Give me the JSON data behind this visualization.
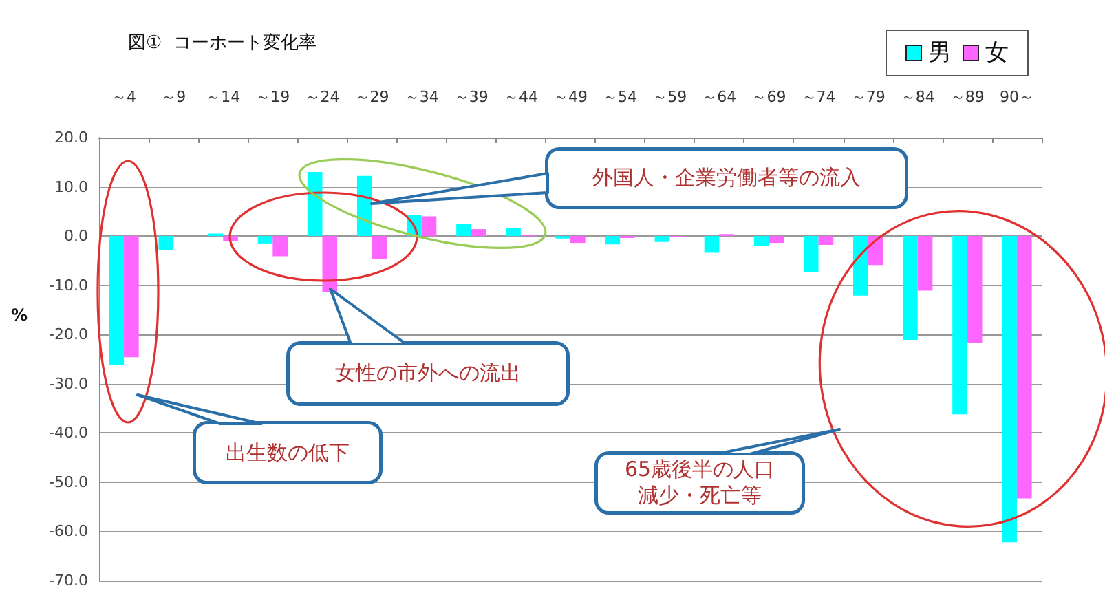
{
  "chart_data": {
    "type": "bar",
    "title": "図①  コーホート変化率",
    "ylabel": "%",
    "categories": [
      "～4",
      "～9",
      "～14",
      "～19",
      "～24",
      "～29",
      "～34",
      "～39",
      "～44",
      "～49",
      "～54",
      "～59",
      "～64",
      "～69",
      "～74",
      "～79",
      "～84",
      "～89",
      "90～"
    ],
    "series": [
      {
        "name": "男",
        "color": "#00ffff",
        "values": [
          -26.2,
          -2.9,
          0.5,
          -1.5,
          13.0,
          12.2,
          4.3,
          2.4,
          1.6,
          -0.5,
          -1.7,
          -1.2,
          -3.4,
          -2.0,
          -7.3,
          -12.1,
          -21.1,
          -36.2,
          -62.2
        ]
      },
      {
        "name": "女",
        "color": "#ff66ff",
        "values": [
          -24.6,
          null,
          -1.0,
          -4.1,
          -11.3,
          -4.7,
          4.0,
          1.4,
          0.3,
          -1.4,
          -0.4,
          -0.2,
          0.4,
          -1.4,
          -1.8,
          -5.9,
          -11.1,
          -21.8,
          -53.3
        ]
      }
    ],
    "ylim": [
      -70,
      20
    ],
    "yticks": [
      {
        "value": -70,
        "label": "-70.0"
      },
      {
        "value": -60,
        "label": "-60.0"
      },
      {
        "value": -50,
        "label": "-50.0"
      },
      {
        "value": -40,
        "label": "-40.0"
      },
      {
        "value": -30,
        "label": "-30.0"
      },
      {
        "value": -20,
        "label": "-20.0"
      },
      {
        "value": -10,
        "label": "-10.0"
      },
      {
        "value": 0,
        "label": "0.0"
      },
      {
        "value": 10,
        "label": "10.0"
      },
      {
        "value": 20,
        "label": "20.0"
      }
    ],
    "grid": "y",
    "legend": "top right",
    "annotations": [
      "外国人・企業労働者等の流入",
      "女性の市外への流出",
      "出生数の低下",
      "65歳後半の人口減少・死亡等"
    ]
  }
}
